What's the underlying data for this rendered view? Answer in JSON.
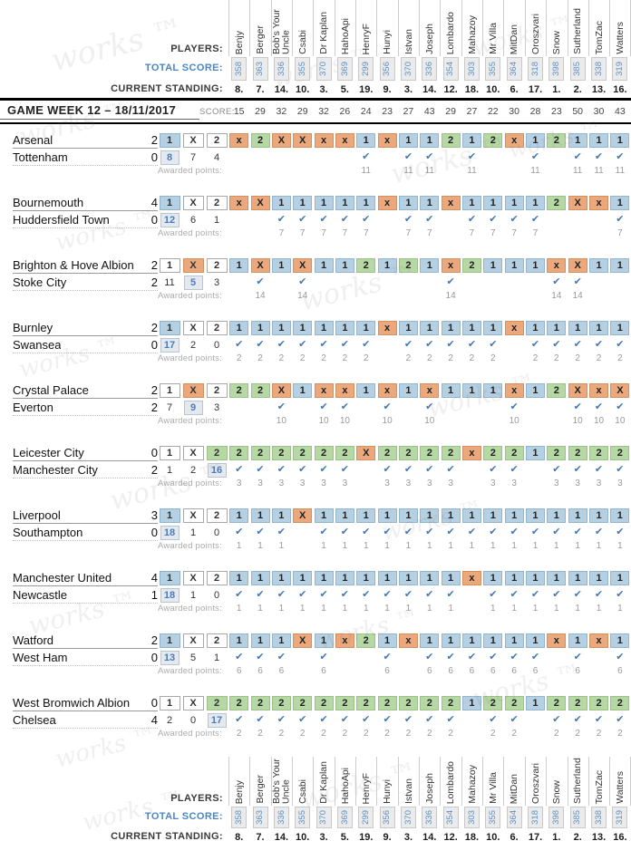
{
  "watermark": "works ™",
  "icons": {
    "check": "✔"
  },
  "symbols": [
    "1",
    "X",
    "2"
  ],
  "header": {
    "players_label": "PLAYERS:",
    "total_label": "TOTAL SCORE:",
    "standing_label": "CURRENT STANDING:",
    "week_title": "GAME WEEK 12 – 18/11/2017",
    "score_label": "SCORE:",
    "awarded_label": "Awarded points:"
  },
  "colors": {
    "pick_home": "#b5d0e2",
    "pick_draw": "#eca87d",
    "pick_away": "#b6d8a5",
    "accent_blue": "#4b7cba"
  },
  "players": [
    {
      "name": "Benjy",
      "total": "358",
      "standing": "8.",
      "week": "15"
    },
    {
      "name": "Berger",
      "total": "363",
      "standing": "7.",
      "week": "29"
    },
    {
      "name": "Bob's Your Uncle",
      "total": "336",
      "standing": "14.",
      "week": "32"
    },
    {
      "name": "Csabi",
      "total": "355",
      "standing": "10.",
      "week": "29"
    },
    {
      "name": "Dr Kaplan",
      "total": "370",
      "standing": "3.",
      "week": "32"
    },
    {
      "name": "HahoApi",
      "total": "369",
      "standing": "5.",
      "week": "26"
    },
    {
      "name": "HenryF",
      "total": "299",
      "standing": "19.",
      "week": "24"
    },
    {
      "name": "Hunyi",
      "total": "356",
      "standing": "9.",
      "week": "23"
    },
    {
      "name": "Istvan",
      "total": "370",
      "standing": "3.",
      "week": "27"
    },
    {
      "name": "Joseph",
      "total": "336",
      "standing": "14.",
      "week": "43"
    },
    {
      "name": "Lombardo",
      "total": "354",
      "standing": "12.",
      "week": "29"
    },
    {
      "name": "Mahazoy",
      "total": "303",
      "standing": "18.",
      "week": "27"
    },
    {
      "name": "Mr Villa",
      "total": "355",
      "standing": "10.",
      "week": "22"
    },
    {
      "name": "MitDan",
      "total": "364",
      "standing": "6.",
      "week": "30"
    },
    {
      "name": "Oroszvari",
      "total": "318",
      "standing": "17.",
      "week": "28"
    },
    {
      "name": "Snow",
      "total": "398",
      "standing": "1.",
      "week": "23"
    },
    {
      "name": "Sutherland",
      "total": "385",
      "standing": "2.",
      "week": "50"
    },
    {
      "name": "TomZac",
      "total": "338",
      "standing": "13.",
      "week": "30"
    },
    {
      "name": "Watters",
      "total": "319",
      "standing": "16.",
      "week": "43"
    }
  ],
  "matches": [
    {
      "home": "Arsenal",
      "home_score": "2",
      "away": "Tottenham",
      "away_score": "0",
      "counts": [
        "8",
        "7",
        "4"
      ],
      "result": "1",
      "points": "11",
      "picks": [
        "x",
        "2",
        "X",
        "X",
        "x",
        "x",
        "1",
        "x",
        "1",
        "1",
        "2",
        "1",
        "2",
        "x",
        "1",
        "2",
        "1",
        "1",
        "1"
      ]
    },
    {
      "home": "Bournemouth",
      "home_score": "4",
      "away": "Huddersfield Town",
      "away_score": "0",
      "counts": [
        "12",
        "6",
        "1"
      ],
      "result": "1",
      "points": "7",
      "picks": [
        "x",
        "X",
        "1",
        "1",
        "1",
        "1",
        "1",
        "x",
        "1",
        "1",
        "x",
        "1",
        "1",
        "1",
        "1",
        "2",
        "X",
        "x",
        "1"
      ]
    },
    {
      "home": "Brighton & Hove Albion",
      "home_score": "2",
      "away": "Stoke City",
      "away_score": "2",
      "counts": [
        "11",
        "5",
        "3"
      ],
      "result": "X",
      "points": "14",
      "picks": [
        "1",
        "X",
        "1",
        "X",
        "1",
        "1",
        "2",
        "1",
        "2",
        "1",
        "x",
        "2",
        "1",
        "1",
        "1",
        "x",
        "X",
        "1",
        "1"
      ]
    },
    {
      "home": "Burnley",
      "home_score": "2",
      "away": "Swansea",
      "away_score": "0",
      "counts": [
        "17",
        "2",
        "0"
      ],
      "result": "1",
      "points": "2",
      "picks": [
        "1",
        "1",
        "1",
        "1",
        "1",
        "1",
        "1",
        "x",
        "1",
        "1",
        "1",
        "1",
        "1",
        "x",
        "1",
        "1",
        "1",
        "1",
        "1"
      ]
    },
    {
      "home": "Crystal Palace",
      "home_score": "2",
      "away": "Everton",
      "away_score": "2",
      "counts": [
        "7",
        "9",
        "3"
      ],
      "result": "X",
      "points": "10",
      "picks": [
        "2",
        "2",
        "X",
        "1",
        "x",
        "x",
        "1",
        "x",
        "1",
        "x",
        "1",
        "1",
        "1",
        "x",
        "1",
        "2",
        "X",
        "x",
        "X"
      ]
    },
    {
      "home": "Leicester City",
      "home_score": "0",
      "away": "Manchester City",
      "away_score": "2",
      "counts": [
        "1",
        "2",
        "16"
      ],
      "result": "2",
      "points": "3",
      "picks": [
        "2",
        "2",
        "2",
        "2",
        "2",
        "2",
        "X",
        "2",
        "2",
        "2",
        "2",
        "x",
        "2",
        "2",
        "1",
        "2",
        "2",
        "2",
        "2"
      ]
    },
    {
      "home": "Liverpool",
      "home_score": "3",
      "away": "Southampton",
      "away_score": "0",
      "counts": [
        "18",
        "1",
        "0"
      ],
      "result": "1",
      "points": "1",
      "picks": [
        "1",
        "1",
        "1",
        "X",
        "1",
        "1",
        "1",
        "1",
        "1",
        "1",
        "1",
        "1",
        "1",
        "1",
        "1",
        "1",
        "1",
        "1",
        "1"
      ]
    },
    {
      "home": "Manchester United",
      "home_score": "4",
      "away": "Newcastle",
      "away_score": "1",
      "counts": [
        "18",
        "1",
        "0"
      ],
      "result": "1",
      "points": "1",
      "picks": [
        "1",
        "1",
        "1",
        "1",
        "1",
        "1",
        "1",
        "1",
        "1",
        "1",
        "1",
        "x",
        "1",
        "1",
        "1",
        "1",
        "1",
        "1",
        "1"
      ]
    },
    {
      "home": "Watford",
      "home_score": "2",
      "away": "West Ham",
      "away_score": "0",
      "counts": [
        "13",
        "5",
        "1"
      ],
      "result": "1",
      "points": "6",
      "picks": [
        "1",
        "1",
        "1",
        "X",
        "1",
        "x",
        "2",
        "1",
        "x",
        "1",
        "1",
        "1",
        "1",
        "1",
        "1",
        "x",
        "1",
        "x",
        "1"
      ]
    },
    {
      "home": "West Bromwich Albion",
      "home_score": "0",
      "away": "Chelsea",
      "away_score": "4",
      "counts": [
        "2",
        "0",
        "17"
      ],
      "result": "2",
      "points": "2",
      "picks": [
        "2",
        "2",
        "2",
        "2",
        "2",
        "2",
        "2",
        "2",
        "2",
        "2",
        "2",
        "1",
        "2",
        "2",
        "1",
        "2",
        "2",
        "2",
        "2"
      ]
    }
  ]
}
